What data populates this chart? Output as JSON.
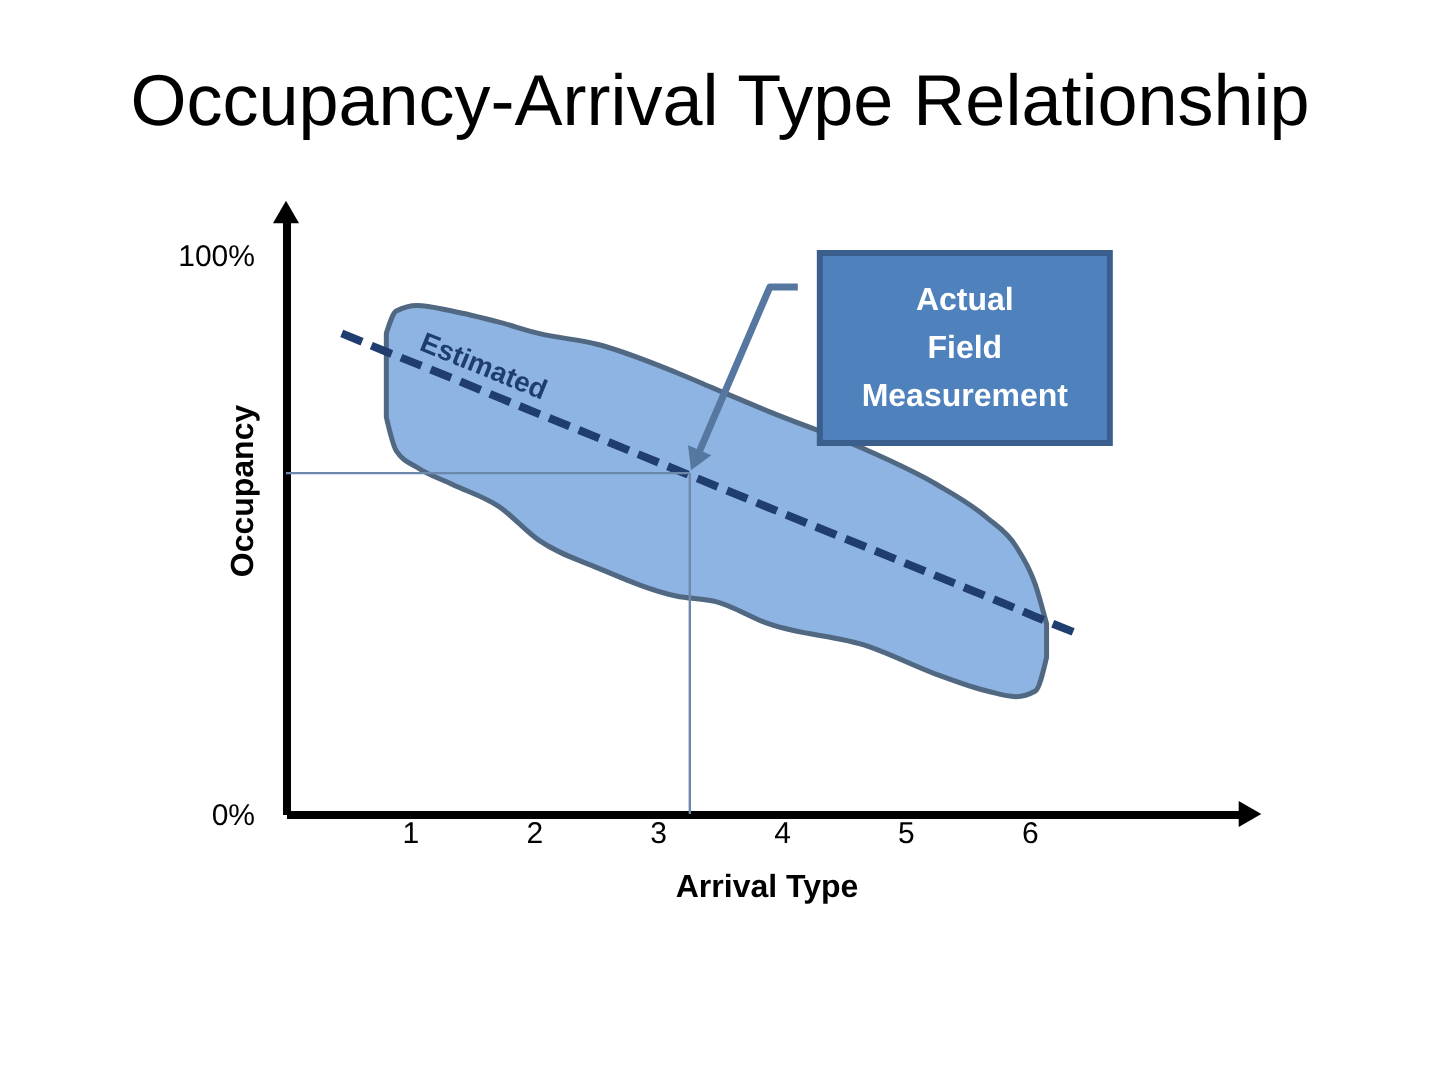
{
  "chart_data": {
    "type": "line",
    "title": "Occupancy-Arrival Type Relationship",
    "xlabel": "Arrival Type",
    "ylabel": "Occupancy",
    "xlim": [
      0,
      7.75
    ],
    "ylim": [
      0,
      107
    ],
    "xticks": [
      1,
      2,
      3,
      4,
      5,
      6
    ],
    "yticks": [
      {
        "value": 0,
        "label": "0%"
      },
      {
        "value": 100,
        "label": "100%"
      }
    ],
    "grid": false,
    "series": [
      {
        "name": "Estimated",
        "color": "#1f3d6e",
        "line_style": "dashed",
        "x": [
          0.45,
          0.81,
          0.89,
          1.06,
          1.34,
          1.72,
          2.04,
          2.52,
          3.15,
          3.47,
          3.9,
          4.7,
          5.25,
          5.66,
          5.89,
          6.05,
          6.14,
          6.42
        ],
        "values": [
          86.0,
          82.7,
          82.0,
          80.5,
          78.0,
          74.5,
          71.6,
          67.3,
          61.6,
          58.7,
          54.8,
          47.6,
          42.6,
          38.9,
          36.8,
          35.3,
          34.5,
          32.0
        ],
        "lower": [
          null,
          71,
          65,
          62,
          59,
          55,
          49,
          44,
          39,
          38,
          34,
          30,
          25,
          22,
          21,
          22,
          28,
          null
        ],
        "upper": [
          null,
          86,
          90,
          91,
          90,
          88,
          86,
          84,
          79,
          76,
          72,
          65,
          59,
          53,
          48,
          41,
          34,
          null
        ]
      }
    ],
    "ref_lines": [
      {
        "axis": "x",
        "value": 3.26,
        "color": "#6c89ac"
      },
      {
        "axis": "y",
        "value": 61,
        "color": "#6c89ac"
      }
    ],
    "annotations": [
      "Actual Field Measurement"
    ]
  }
}
